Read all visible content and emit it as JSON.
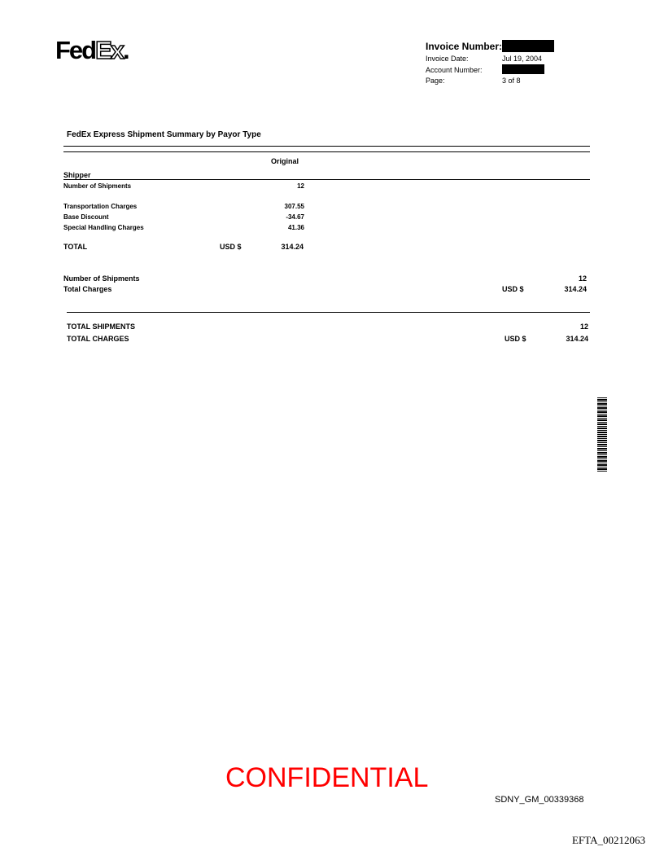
{
  "logo": {
    "text": "FedEx"
  },
  "header": {
    "invoice_number_label": "Invoice Number:",
    "invoice_date_label": "Invoice Date:",
    "invoice_date": "Jul 19, 2004",
    "account_number_label": "Account Number:",
    "page_label": "Page:",
    "page": "3 of 8"
  },
  "title": "FedEx Express Shipment Summary by Payor Type",
  "column_header": "Original",
  "section": "Shipper",
  "rows": [
    {
      "label": "Number of Shipments",
      "value": "12"
    },
    {
      "label": "Transportation Charges",
      "value": "307.55"
    },
    {
      "label": "Base Discount",
      "value": "-34.67"
    },
    {
      "label": "Special Handling Charges",
      "value": "41.36"
    }
  ],
  "total": {
    "label": "TOTAL",
    "currency": "USD $",
    "value": "314.24"
  },
  "summary": {
    "shipments_label": "Number of Shipments",
    "shipments": "12",
    "charges_label": "Total Charges",
    "currency": "USD $",
    "charges": "314.24"
  },
  "grand": {
    "shipments_label": "TOTAL SHIPMENTS",
    "shipments": "12",
    "charges_label": "TOTAL CHARGES",
    "currency": "USD $",
    "charges": "314.24"
  },
  "stamp": {
    "text": "CONFIDENTIAL",
    "color": "#ff0000"
  },
  "bates": "SDNY_GM_00339368",
  "efta": "EFTA_00212063"
}
